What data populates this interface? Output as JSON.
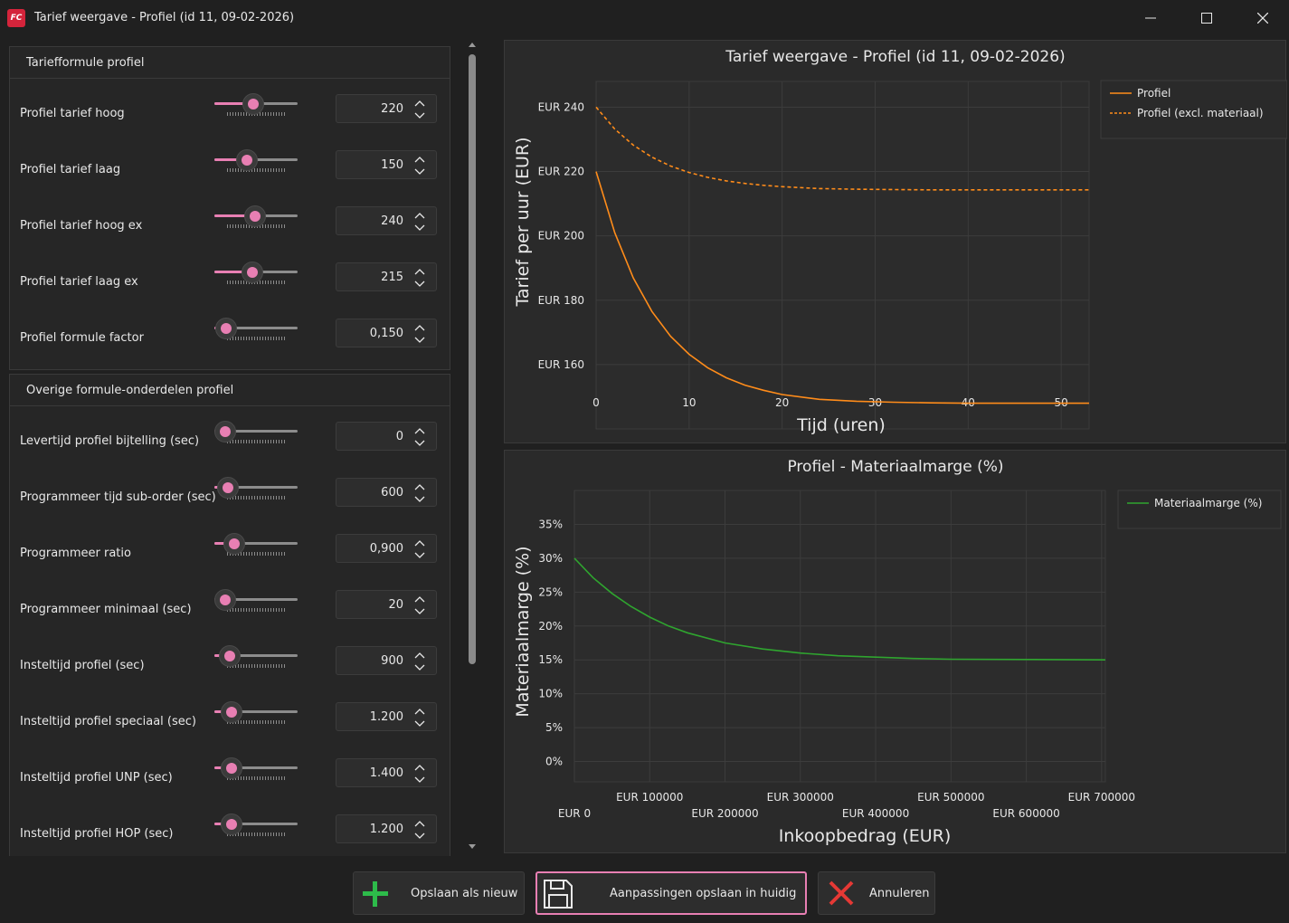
{
  "window": {
    "title": "Tarief weergave - Profiel (id 11, 09-02-2026)",
    "logo_text": "FC",
    "accent": "#e87fb3"
  },
  "groups": [
    {
      "title": "Tariefformule profiel",
      "rows": [
        {
          "label": "Profiel tarief hoog",
          "value": "220",
          "slider_fraction": 0.45
        },
        {
          "label": "Profiel tarief laag",
          "value": "150",
          "slider_fraction": 0.35
        },
        {
          "label": "Profiel tarief hoog ex",
          "value": "240",
          "slider_fraction": 0.48
        },
        {
          "label": "Profiel tarief laag ex",
          "value": "215",
          "slider_fraction": 0.44
        },
        {
          "label": "Profiel formule factor",
          "value": "0,150",
          "slider_fraction": 0.02
        }
      ]
    },
    {
      "title": "Overige formule-onderdelen profiel",
      "rows": [
        {
          "label": "Levertijd profiel bijtelling (sec)",
          "value": "0",
          "slider_fraction": 0.0
        },
        {
          "label": "Programmeer tijd sub-order (sec)",
          "value": "600",
          "slider_fraction": 0.05
        },
        {
          "label": "Programmeer ratio",
          "value": "0,900",
          "slider_fraction": 0.14
        },
        {
          "label": "Programmeer minimaal (sec)",
          "value": "20",
          "slider_fraction": 0.0
        },
        {
          "label": "Insteltijd profiel (sec)",
          "value": "900",
          "slider_fraction": 0.07
        },
        {
          "label": "Insteltijd profiel speciaal (sec)",
          "value": "1.200",
          "slider_fraction": 0.1
        },
        {
          "label": "Insteltijd profiel UNP (sec)",
          "value": "1.400",
          "slider_fraction": 0.1
        },
        {
          "label": "Insteltijd profiel HOP (sec)",
          "value": "1.200",
          "slider_fraction": 0.1
        }
      ]
    }
  ],
  "buttons": {
    "save_new": "Opslaan als nieuw",
    "save_current": "Aanpassingen opslaan in huidig",
    "cancel": "Annuleren"
  },
  "chart_data": [
    {
      "type": "line",
      "title": "Tarief weergave - Profiel (id 11, 09-02-2026)",
      "xlabel": "Tijd (uren)",
      "ylabel": "Tarief per uur (EUR)",
      "xlim": [
        0,
        53
      ],
      "ylim": [
        140,
        248
      ],
      "x_ticks": [
        0,
        10,
        20,
        30,
        40,
        50
      ],
      "y_ticks": [
        160,
        180,
        200,
        220,
        240
      ],
      "y_tick_labels": [
        "EUR 160",
        "EUR 180",
        "EUR 200",
        "EUR 220",
        "EUR 240"
      ],
      "legend_position": "top-right",
      "grid": true,
      "series": [
        {
          "name": "Profiel",
          "style": "solid",
          "color": "#ff8c1a",
          "x": [
            0,
            2,
            4,
            6,
            8,
            10,
            12,
            14,
            16,
            18,
            20,
            24,
            28,
            32,
            36,
            40,
            44,
            48,
            53
          ],
          "values": [
            220.0,
            201.0,
            186.9,
            176.5,
            168.8,
            163.2,
            159.0,
            155.9,
            153.6,
            152.0,
            150.7,
            149.2,
            148.6,
            148.3,
            148.1,
            148.0,
            148.0,
            148.0,
            148.0
          ]
        },
        {
          "name": "Profiel (excl. materiaal)",
          "style": "dashed",
          "color": "#ff8c1a",
          "x": [
            0,
            2,
            4,
            6,
            8,
            10,
            12,
            14,
            16,
            18,
            20,
            24,
            28,
            32,
            36,
            40,
            44,
            48,
            53
          ],
          "values": [
            240.0,
            233.2,
            228.2,
            224.5,
            221.7,
            219.7,
            218.2,
            217.1,
            216.3,
            215.7,
            215.3,
            214.7,
            214.5,
            214.4,
            214.3,
            214.3,
            214.3,
            214.3,
            214.3
          ]
        }
      ]
    },
    {
      "type": "line",
      "title": "Profiel - Materiaalmarge (%)",
      "xlabel": "Inkoopbedrag (EUR)",
      "ylabel": "Materiaalmarge (%)",
      "xlim": [
        0,
        705000
      ],
      "ylim": [
        -3,
        40
      ],
      "x_ticks": [
        0,
        100000,
        200000,
        300000,
        400000,
        500000,
        600000,
        700000
      ],
      "x_tick_labels": [
        "EUR 0",
        "EUR 100000",
        "EUR 200000",
        "EUR 300000",
        "EUR 400000",
        "EUR 500000",
        "EUR 600000",
        "EUR 700000"
      ],
      "y_ticks": [
        0,
        5,
        10,
        15,
        20,
        25,
        30,
        35
      ],
      "y_tick_labels": [
        "0%",
        "5%",
        "10%",
        "15%",
        "20%",
        "25%",
        "30%",
        "35%"
      ],
      "legend_position": "top-right",
      "grid": true,
      "series": [
        {
          "name": "Materiaalmarge (%)",
          "style": "solid",
          "color": "#2fa52f",
          "x": [
            0,
            25000,
            50000,
            75000,
            100000,
            125000,
            150000,
            200000,
            250000,
            300000,
            350000,
            400000,
            450000,
            500000,
            600000,
            705000
          ],
          "values": [
            30.0,
            27.1,
            24.8,
            22.9,
            21.3,
            20.0,
            19.0,
            17.5,
            16.6,
            16.0,
            15.6,
            15.4,
            15.2,
            15.1,
            15.05,
            15.0
          ]
        }
      ]
    }
  ]
}
